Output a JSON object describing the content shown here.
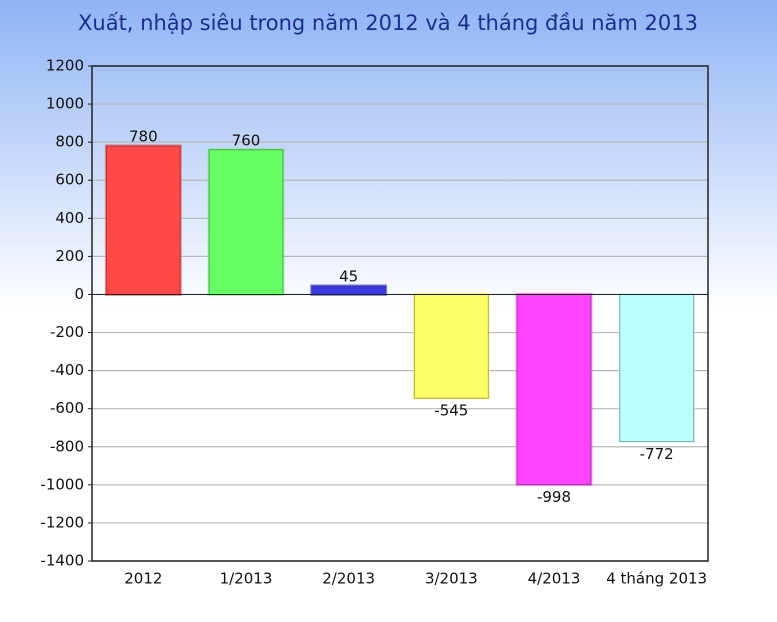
{
  "chart_data": {
    "type": "bar",
    "title": "Xuất, nhập siêu trong năm 2012 và 4 tháng đầu năm 2013",
    "categories": [
      "2012",
      "1/2013",
      "2/2013",
      "3/2013",
      "4/2013",
      "4 tháng 2013"
    ],
    "values": [
      780,
      760,
      45,
      -545,
      -998,
      -772
    ],
    "colors": [
      "#ff4848",
      "#66ff66",
      "#3a3ae0",
      "#ffff66",
      "#ff44ff",
      "#bbffff"
    ],
    "ylim": [
      -1400,
      1200
    ],
    "yticks": [
      -1400,
      -1200,
      -1000,
      -800,
      -600,
      -400,
      -200,
      0,
      200,
      400,
      600,
      800,
      1000,
      1200
    ],
    "grid": true
  }
}
